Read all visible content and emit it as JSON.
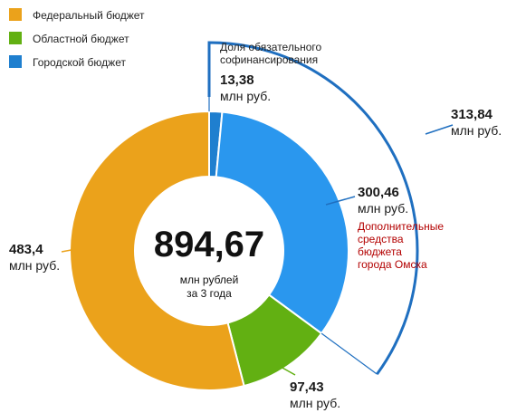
{
  "chart_data": {
    "type": "donut",
    "unit_label": "млн руб.",
    "slices": [
      {
        "name": "Городской бюджет",
        "value": 13.38,
        "value_label": "13,38",
        "color": "#1f7fcf"
      },
      {
        "name": "Городской бюджет",
        "value": 300.46,
        "value_label": "300,46",
        "color": "#2a97ee"
      },
      {
        "name": "Областной бюджет",
        "value": 97.43,
        "value_label": "97,43",
        "color": "#62b012"
      },
      {
        "name": "Федеральный бюджет",
        "value": 483.4,
        "value_label": "483,4",
        "color": "#eba21b"
      }
    ],
    "total": {
      "value": "894,67",
      "line1": "млн рублей",
      "line2": "за 3 года"
    },
    "legend": [
      {
        "name": "Федеральный бюджет",
        "color": "#eba21b"
      },
      {
        "name": "Областной бюджет",
        "color": "#62b012"
      },
      {
        "name": "Городской бюджет",
        "color": "#1f7fcf"
      }
    ],
    "annotations": {
      "cofinancing": [
        "Доля обязательного",
        "софинансирования"
      ],
      "additional": [
        "Дополнительные",
        "средства",
        "бюджета",
        "города Омска"
      ],
      "city_total": {
        "value_label": "313,84",
        "value": 313.84
      }
    }
  }
}
